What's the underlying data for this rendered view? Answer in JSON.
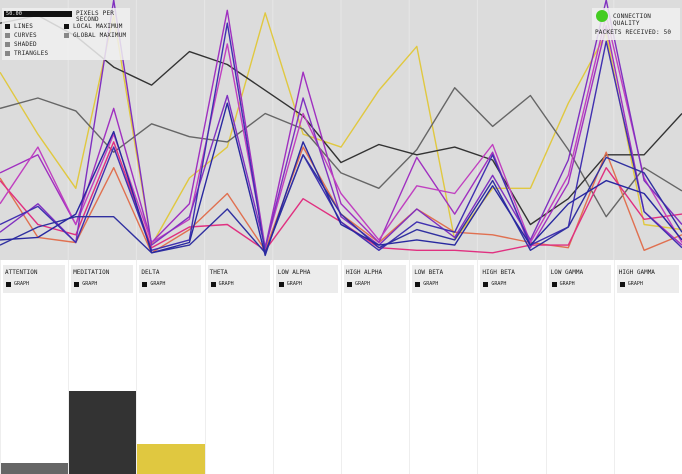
{
  "controls": {
    "speed_value": "50.00",
    "speed_label": "PIXELS PER SECOND",
    "render_options": [
      {
        "label": "LINES",
        "color": "#111111"
      },
      {
        "label": "CURVES",
        "color": "#888888"
      },
      {
        "label": "SHADED",
        "color": "#888888"
      },
      {
        "label": "TRIANGLES",
        "color": "#888888"
      }
    ],
    "max_options": [
      {
        "label": "LOCAL MAXIMUM",
        "color": "#111111"
      },
      {
        "label": "GLOBAL MAXIMUM",
        "color": "#888888"
      }
    ]
  },
  "status": {
    "connection_label": "CONNECTION QUALITY",
    "connection_color": "#44cc22",
    "packets_label": "PACKETS RECEIVED: 50"
  },
  "channels": [
    {
      "name": "ATTENTION",
      "graph_label": "GRAPH",
      "color": "#666666",
      "level": 0.053
    },
    {
      "name": "MEDITATION",
      "graph_label": "GRAPH",
      "color": "#333333",
      "level": 0.388
    },
    {
      "name": "DELTA",
      "graph_label": "GRAPH",
      "color": "#e0c840",
      "level": 0.14
    },
    {
      "name": "THETA",
      "graph_label": "GRAPH",
      "color": "#cccccc",
      "level": 0
    },
    {
      "name": "LOW ALPHA",
      "graph_label": "GRAPH",
      "color": "#cccccc",
      "level": 0
    },
    {
      "name": "HIGH ALPHA",
      "graph_label": "GRAPH",
      "color": "#cccccc",
      "level": 0
    },
    {
      "name": "LOW BETA",
      "graph_label": "GRAPH",
      "color": "#cccccc",
      "level": 0
    },
    {
      "name": "HIGH BETA",
      "graph_label": "GRAPH",
      "color": "#cccccc",
      "level": 0
    },
    {
      "name": "LOW GAMMA",
      "graph_label": "GRAPH",
      "color": "#cccccc",
      "level": 0
    },
    {
      "name": "HIGH GAMMA",
      "graph_label": "GRAPH",
      "color": "#cccccc",
      "level": 0
    }
  ],
  "chart_data": {
    "type": "line",
    "ylim": [
      0,
      100
    ],
    "grid": true,
    "series": [
      {
        "color": "#e0c840",
        "values": [
          72,
          48,
          27,
          94,
          5,
          31,
          43,
          95,
          48,
          43,
          65,
          82,
          7,
          27,
          27,
          60,
          87,
          13,
          11
        ]
      },
      {
        "color": "#666666",
        "values": [
          58,
          62,
          57,
          41,
          52,
          47,
          45,
          56,
          50,
          33,
          27,
          42,
          66,
          51,
          63,
          42,
          16,
          35,
          26
        ]
      },
      {
        "color": "#333333",
        "values": [
          91,
          94,
          86,
          74,
          67,
          80,
          75,
          65,
          55,
          37,
          44,
          40,
          43,
          38,
          13,
          23,
          40,
          40,
          56
        ]
      },
      {
        "color": "#e07050",
        "values": [
          31,
          8,
          6,
          35,
          2,
          11,
          25,
          3,
          43,
          17,
          6,
          19,
          10,
          9,
          6,
          4,
          41,
          3,
          9
        ]
      },
      {
        "color": "#e03080",
        "values": [
          30,
          13,
          9,
          45,
          4,
          12,
          13,
          3,
          23,
          14,
          4,
          3,
          3,
          2,
          5,
          5,
          35,
          15,
          17
        ]
      },
      {
        "color": "#a030c0",
        "values": [
          33,
          40,
          13,
          58,
          6,
          21,
          96,
          4,
          72,
          21,
          6,
          39,
          17,
          41,
          4,
          29,
          90,
          18,
          5
        ]
      },
      {
        "color": "#c040c0",
        "values": [
          21,
          43,
          13,
          48,
          6,
          15,
          83,
          4,
          56,
          25,
          7,
          28,
          25,
          44,
          6,
          32,
          94,
          31,
          6
        ]
      },
      {
        "color": "#8030c0",
        "values": [
          10,
          21,
          6,
          100,
          5,
          16,
          63,
          4,
          62,
          16,
          5,
          19,
          8,
          32,
          7,
          38,
          100,
          30,
          13
        ]
      },
      {
        "color": "#4030b0",
        "values": [
          13,
          20,
          6,
          43,
          3,
          7,
          91,
          2,
          40,
          14,
          3,
          14,
          10,
          40,
          5,
          12,
          84,
          18,
          4
        ]
      },
      {
        "color": "#3030a0",
        "values": [
          5,
          12,
          16,
          16,
          2,
          5,
          19,
          2,
          40,
          17,
          4,
          11,
          7,
          30,
          3,
          12,
          39,
          33,
          10
        ]
      },
      {
        "color": "#2828a0",
        "values": [
          7,
          8,
          17,
          49,
          2,
          6,
          60,
          1,
          45,
          13,
          5,
          7,
          5,
          28,
          5,
          21,
          30,
          25,
          7
        ]
      }
    ]
  }
}
